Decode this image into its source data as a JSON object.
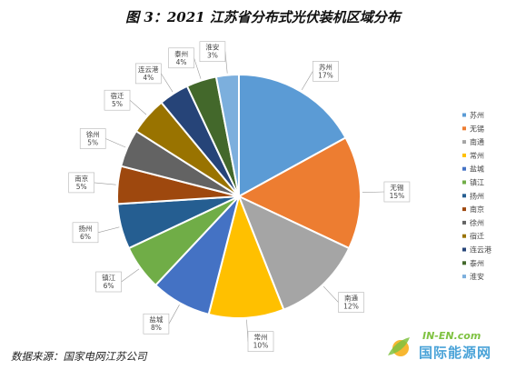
{
  "title": "图 3：2021 江苏省分布式光伏装机区域分布",
  "source": "数据来源：国家电网江苏公司",
  "watermark": {
    "top": "IN-EN.com",
    "main": "国际能源网"
  },
  "chart_data": {
    "type": "pie",
    "title": "图 3：2021 江苏省分布式光伏装机区域分布",
    "unit": "%",
    "legend_position": "right",
    "slices": [
      {
        "name": "苏州",
        "value": 17,
        "label": "17%",
        "color": "#5b9bd5"
      },
      {
        "name": "无锡",
        "value": 15,
        "label": "15%",
        "color": "#ed7d31"
      },
      {
        "name": "南通",
        "value": 12,
        "label": "12%",
        "color": "#a5a5a5"
      },
      {
        "name": "常州",
        "value": 10,
        "label": "10%",
        "color": "#ffc000"
      },
      {
        "name": "盐城",
        "value": 8,
        "label": "8%",
        "color": "#4472c4"
      },
      {
        "name": "镇江",
        "value": 6,
        "label": "6%",
        "color": "#70ad47"
      },
      {
        "name": "扬州",
        "value": 6,
        "label": "6%",
        "color": "#255e91"
      },
      {
        "name": "南京",
        "value": 5,
        "label": "5%",
        "color": "#9e480e"
      },
      {
        "name": "徐州",
        "value": 5,
        "label": "5%",
        "color": "#636363"
      },
      {
        "name": "宿迁",
        "value": 5,
        "label": "5%",
        "color": "#997300"
      },
      {
        "name": "连云港",
        "value": 4,
        "label": "4%",
        "color": "#264478"
      },
      {
        "name": "泰州",
        "value": 4,
        "label": "4%",
        "color": "#43682b"
      },
      {
        "name": "淮安",
        "value": 3,
        "label": "3%",
        "color": "#7cafdd"
      }
    ]
  }
}
